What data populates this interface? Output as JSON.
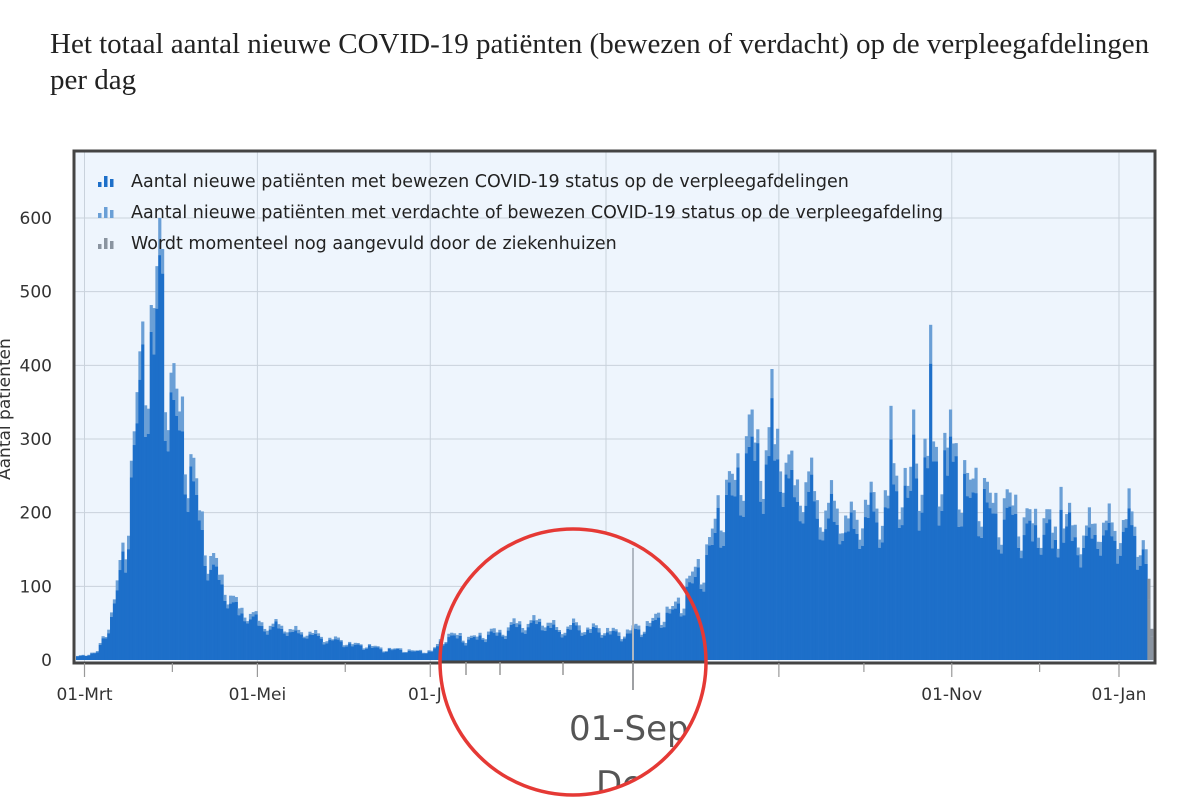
{
  "title": "Het totaal aantal nieuwe COVID-19 patiënten (bewezen of verdacht) op de verpleegafdelingen per dag",
  "colors": {
    "proven": "#1d6fc9",
    "suspected": "#6a9fd6",
    "incomplete": "#8a94a0",
    "plot_bg": "#eef5fd",
    "frame": "#444444",
    "magnifier": "#e53935"
  },
  "chart_data": {
    "type": "bar",
    "title": "Het totaal aantal nieuwe COVID-19 patiënten (bewezen of verdacht) op de verpleegafdelingen per dag",
    "ylabel": "Aantal patiënten",
    "xlabel": "",
    "ylim": [
      0,
      650
    ],
    "yticks": [
      0,
      100,
      200,
      300,
      400,
      500,
      600
    ],
    "xticks": [
      "01-Mrt",
      "01-Mei",
      "01-Jul",
      "01-Nov",
      "01-Jan",
      "01-Mrt"
    ],
    "x_tick_labels_shown": [
      "01-Mrt",
      "01-Mei",
      "01-Ju",
      "",
      "",
      "01-Nov",
      "01-Jan",
      "01-Mrt"
    ],
    "x_tick_month_index": [
      0,
      2,
      4,
      6,
      8,
      10,
      12,
      14
    ],
    "x_start": "2020-02-27",
    "x_end": "2021-03-12",
    "grid": true,
    "legend_position": "top-left",
    "legend": [
      "Aantal nieuwe patiënten met bewezen COVID-19 status op de verpleegafdelingen",
      "Aantal nieuwe patiënten met verdachte of bewezen COVID-19 status op de verpleegafdeling",
      "Wordt momenteel nog aangevuld door de ziekenhuizen"
    ],
    "anchors_total": [
      [
        "2020-02-27",
        5
      ],
      [
        "2020-03-05",
        12
      ],
      [
        "2020-03-10",
        60
      ],
      [
        "2020-03-14",
        160
      ],
      [
        "2020-03-17",
        250
      ],
      [
        "2020-03-20",
        400
      ],
      [
        "2020-03-22",
        470
      ],
      [
        "2020-03-25",
        480
      ],
      [
        "2020-03-27",
        600
      ],
      [
        "2020-03-29",
        420
      ],
      [
        "2020-04-01",
        390
      ],
      [
        "2020-04-04",
        350
      ],
      [
        "2020-04-07",
        270
      ],
      [
        "2020-04-10",
        210
      ],
      [
        "2020-04-14",
        150
      ],
      [
        "2020-04-18",
        110
      ],
      [
        "2020-04-22",
        85
      ],
      [
        "2020-04-26",
        70
      ],
      [
        "2020-05-01",
        55
      ],
      [
        "2020-05-08",
        48
      ],
      [
        "2020-05-15",
        42
      ],
      [
        "2020-05-22",
        35
      ],
      [
        "2020-06-01",
        25
      ],
      [
        "2020-06-15",
        16
      ],
      [
        "2020-07-01",
        12
      ],
      [
        "2020-07-06",
        38
      ],
      [
        "2020-07-15",
        35
      ],
      [
        "2020-07-25",
        45
      ],
      [
        "2020-08-01",
        55
      ],
      [
        "2020-08-08",
        60
      ],
      [
        "2020-08-15",
        48
      ],
      [
        "2020-08-22",
        52
      ],
      [
        "2020-09-01",
        45
      ],
      [
        "2020-09-08",
        42
      ],
      [
        "2020-09-15",
        55
      ],
      [
        "2020-09-22",
        70
      ],
      [
        "2020-09-28",
        95
      ],
      [
        "2020-10-03",
        130
      ],
      [
        "2020-10-07",
        165
      ],
      [
        "2020-10-12",
        230
      ],
      [
        "2020-10-17",
        275
      ],
      [
        "2020-10-22",
        310
      ],
      [
        "2020-10-27",
        305
      ],
      [
        "2020-11-01",
        300
      ],
      [
        "2020-11-06",
        260
      ],
      [
        "2020-11-12",
        240
      ],
      [
        "2020-11-20",
        210
      ],
      [
        "2020-11-28",
        205
      ],
      [
        "2020-12-06",
        225
      ],
      [
        "2020-12-14",
        255
      ],
      [
        "2020-12-22",
        275
      ],
      [
        "2020-12-28",
        300
      ],
      [
        "2021-01-01",
        275
      ],
      [
        "2021-01-05",
        265
      ],
      [
        "2021-01-12",
        230
      ],
      [
        "2021-01-20",
        215
      ],
      [
        "2021-01-28",
        200
      ],
      [
        "2021-02-05",
        190
      ],
      [
        "2021-02-12",
        185
      ],
      [
        "2021-02-20",
        190
      ],
      [
        "2021-02-28",
        195
      ],
      [
        "2021-03-06",
        190
      ],
      [
        "2021-03-10",
        165
      ],
      [
        "2021-03-12",
        40
      ]
    ],
    "spikes": [
      [
        "2020-03-27",
        600
      ],
      [
        "2020-03-31",
        390
      ],
      [
        "2020-10-29",
        395
      ],
      [
        "2020-10-22",
        340
      ],
      [
        "2020-11-26",
        215
      ],
      [
        "2020-12-10",
        345
      ],
      [
        "2020-12-18",
        340
      ],
      [
        "2020-12-24",
        455
      ],
      [
        "2020-12-31",
        340
      ],
      [
        "2021-02-08",
        235
      ],
      [
        "2021-03-04",
        233
      ]
    ],
    "suspected_fraction": 0.1,
    "incomplete_from": "2021-03-11"
  },
  "magnifier": {
    "label": "01-Sep",
    "sublabel": "De"
  }
}
